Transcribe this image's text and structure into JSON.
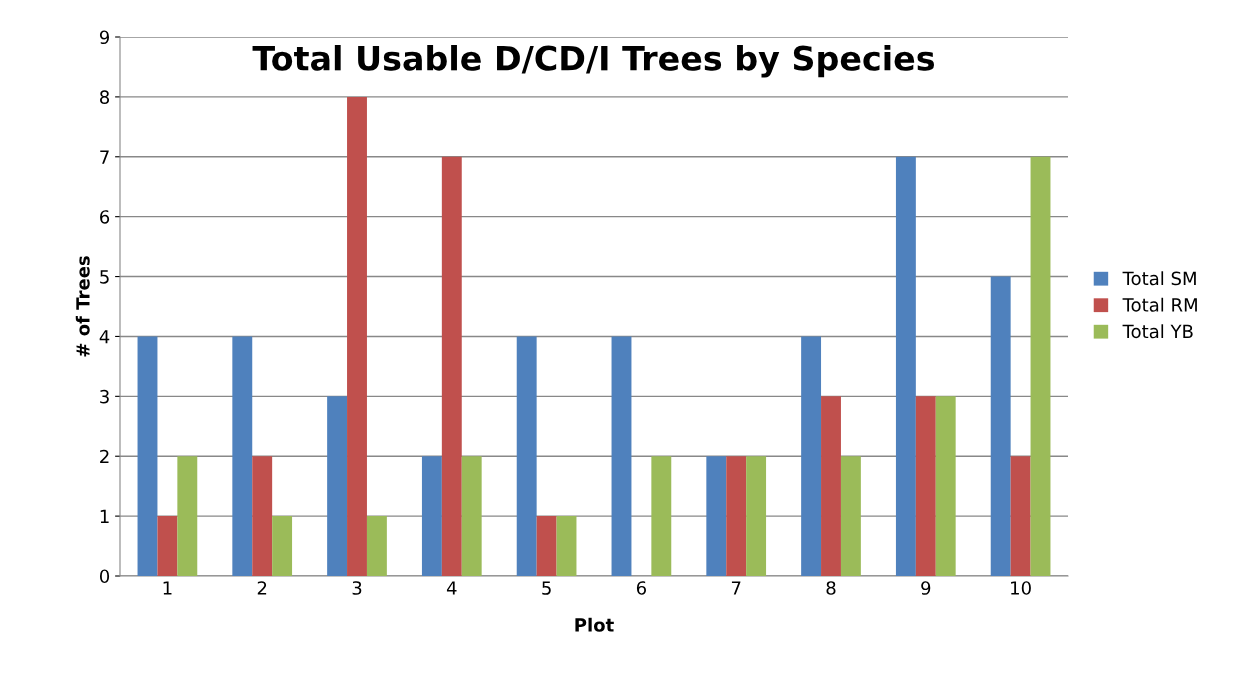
{
  "chart_data": {
    "type": "bar",
    "title": "Total Usable D/CD/I Trees by Species",
    "xlabel": "Plot",
    "ylabel": "# of Trees",
    "categories": [
      "1",
      "2",
      "3",
      "4",
      "5",
      "6",
      "7",
      "8",
      "9",
      "10"
    ],
    "series": [
      {
        "name": "Total SM",
        "color": "#4f81bd",
        "values": [
          4,
          4,
          3,
          2,
          4,
          4,
          2,
          4,
          7,
          5
        ]
      },
      {
        "name": "Total RM",
        "color": "#c0504d",
        "values": [
          1,
          2,
          8,
          7,
          1,
          0,
          2,
          3,
          3,
          2
        ]
      },
      {
        "name": "Total YB",
        "color": "#9bbb59",
        "values": [
          2,
          1,
          1,
          2,
          1,
          2,
          2,
          2,
          3,
          7
        ]
      }
    ],
    "ylim": [
      0,
      9
    ],
    "yticks": [
      0,
      1,
      2,
      3,
      4,
      5,
      6,
      7,
      8,
      9
    ],
    "grid": "y",
    "legend": "right"
  }
}
